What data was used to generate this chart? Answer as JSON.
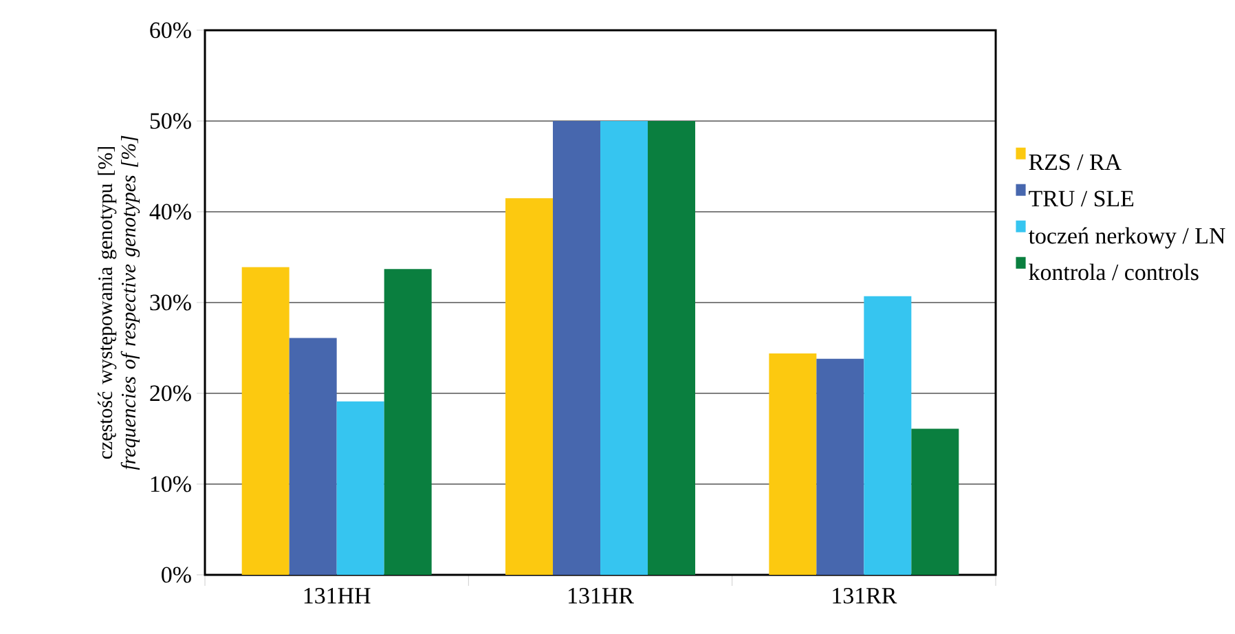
{
  "chart_data": {
    "type": "bar",
    "ylabel": "częstość występowania genotypu [%] *frequencies of respective genotypes [%]*",
    "categories": [
      "131HH",
      "131HR",
      "131RR"
    ],
    "series": [
      {
        "name": "RZS / RA",
        "color": "#fcc910",
        "values": [
          33.9,
          41.5,
          24.4
        ]
      },
      {
        "name": "TRU / SLE",
        "color": "#4767ae",
        "values": [
          26.1,
          50,
          23.8
        ]
      },
      {
        "name": "toczeń nerkowy / LN",
        "color": "#36c5f0",
        "values": [
          19.1,
          50,
          30.7
        ]
      },
      {
        "name": "kontrola / controls",
        "color": "#0a7f3f",
        "values": [
          33.7,
          50,
          16.1
        ]
      }
    ],
    "ylim": [
      0,
      60
    ],
    "yticks": [
      {
        "value": 0,
        "label": "0%"
      },
      {
        "value": 10,
        "label": "10%"
      },
      {
        "value": 20,
        "label": "20%"
      },
      {
        "value": 30,
        "label": "30%"
      },
      {
        "value": 40,
        "label": "40%"
      },
      {
        "value": 50,
        "label": "50%"
      },
      {
        "value": 60,
        "label": "60%"
      }
    ],
    "grid": "y",
    "legend": "right"
  }
}
